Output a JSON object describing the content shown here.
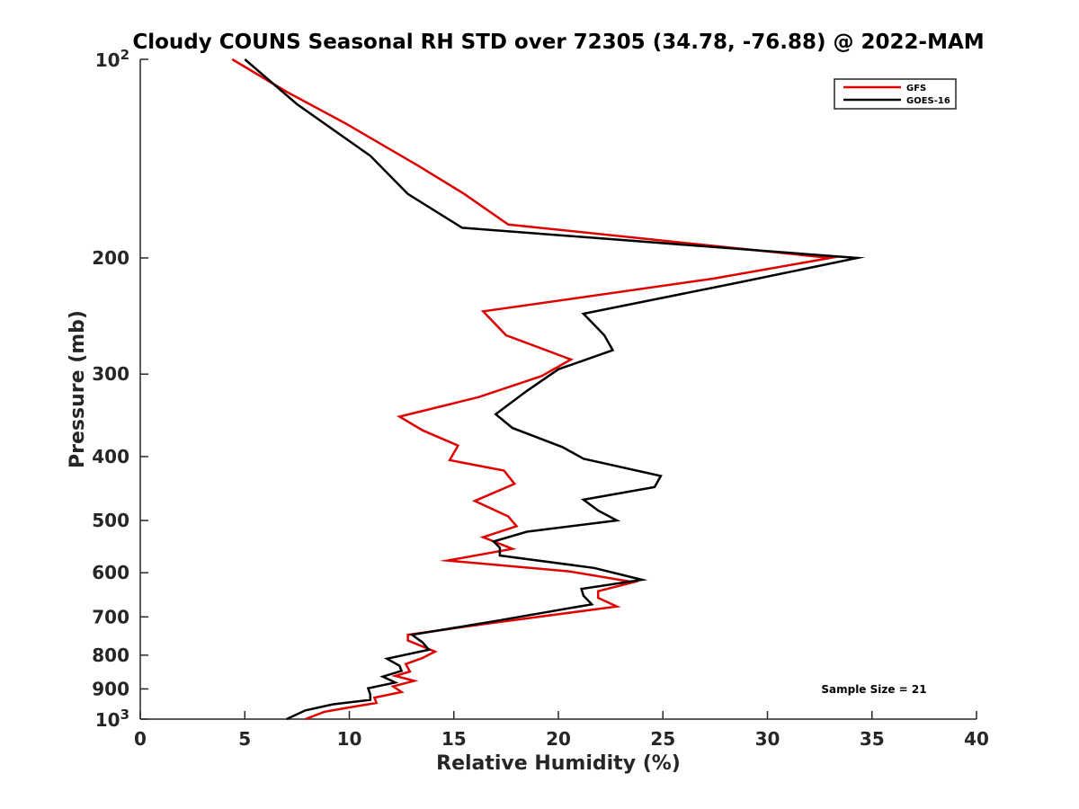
{
  "chart_data": {
    "type": "line",
    "title": "Cloudy COUNS Seasonal RH STD over 72305 (34.78, -76.88) @ 2022-MAM",
    "xlabel": "Relative Humidity (%)",
    "ylabel": "Pressure (mb)",
    "xlim": [
      0,
      40
    ],
    "ylim": [
      100,
      1000
    ],
    "yscale": "log",
    "y_reversed": true,
    "grid": false,
    "legend_position": "top-right",
    "xticks": [
      0,
      5,
      10,
      15,
      20,
      25,
      30,
      35,
      40
    ],
    "xtick_labels": [
      "0",
      "5",
      "10",
      "15",
      "20",
      "25",
      "30",
      "35",
      "40"
    ],
    "yticks": [
      100,
      200,
      300,
      400,
      500,
      600,
      700,
      800,
      900,
      1000
    ],
    "ytick_labels": [
      {
        "base": "10",
        "exp": "2"
      },
      {
        "text": "200"
      },
      {
        "text": "300"
      },
      {
        "text": "400"
      },
      {
        "text": "500"
      },
      {
        "text": "600"
      },
      {
        "text": "700"
      },
      {
        "text": "800"
      },
      {
        "text": "900"
      },
      {
        "base": "10",
        "exp": "3"
      }
    ],
    "annotation": "Sample Size = 21",
    "series": [
      {
        "name": "GFS",
        "color": "#e00000",
        "points": [
          [
            4.4,
            100
          ],
          [
            7.0,
            112
          ],
          [
            9.8,
            125
          ],
          [
            13.3,
            145
          ],
          [
            15.5,
            160
          ],
          [
            17.6,
            178
          ],
          [
            33.0,
            200
          ],
          [
            27.4,
            215
          ],
          [
            16.4,
            241
          ],
          [
            17.5,
            262
          ],
          [
            20.6,
            285
          ],
          [
            19.2,
            302
          ],
          [
            16.2,
            325
          ],
          [
            12.4,
            348
          ],
          [
            13.5,
            365
          ],
          [
            15.2,
            385
          ],
          [
            14.8,
            405
          ],
          [
            17.4,
            420
          ],
          [
            17.9,
            440
          ],
          [
            16.0,
            467
          ],
          [
            17.6,
            493
          ],
          [
            18.0,
            510
          ],
          [
            16.4,
            530
          ],
          [
            17.8,
            552
          ],
          [
            14.7,
            575
          ],
          [
            20.5,
            597
          ],
          [
            23.6,
            620
          ],
          [
            21.9,
            640
          ],
          [
            21.9,
            655
          ],
          [
            22.8,
            675
          ],
          [
            16.8,
            715
          ],
          [
            12.8,
            745
          ],
          [
            12.8,
            760
          ],
          [
            14.1,
            790
          ],
          [
            13.5,
            808
          ],
          [
            12.7,
            825
          ],
          [
            12.9,
            847
          ],
          [
            12.2,
            860
          ],
          [
            13.1,
            875
          ],
          [
            12.1,
            892
          ],
          [
            12.5,
            910
          ],
          [
            11.2,
            928
          ],
          [
            11.3,
            945
          ],
          [
            10.0,
            960
          ],
          [
            8.8,
            975
          ],
          [
            7.9,
            1000
          ]
        ]
      },
      {
        "name": "GOES-16",
        "color": "#000000",
        "points": [
          [
            5.0,
            100
          ],
          [
            7.5,
            117
          ],
          [
            11.0,
            140
          ],
          [
            12.8,
            160
          ],
          [
            15.4,
            180
          ],
          [
            34.3,
            200
          ],
          [
            28.6,
            218
          ],
          [
            21.2,
            243
          ],
          [
            22.2,
            262
          ],
          [
            22.6,
            276
          ],
          [
            20.0,
            295
          ],
          [
            18.5,
            318
          ],
          [
            17.0,
            345
          ],
          [
            17.8,
            362
          ],
          [
            20.2,
            387
          ],
          [
            21.2,
            403
          ],
          [
            24.9,
            428
          ],
          [
            24.6,
            445
          ],
          [
            21.2,
            465
          ],
          [
            21.9,
            483
          ],
          [
            22.8,
            500
          ],
          [
            18.5,
            520
          ],
          [
            16.9,
            538
          ],
          [
            17.2,
            550
          ],
          [
            17.2,
            565
          ],
          [
            21.7,
            590
          ],
          [
            24.0,
            615
          ],
          [
            21.1,
            635
          ],
          [
            21.2,
            650
          ],
          [
            21.6,
            670
          ],
          [
            17.0,
            710
          ],
          [
            13.0,
            745
          ],
          [
            13.5,
            765
          ],
          [
            13.8,
            785
          ],
          [
            11.8,
            810
          ],
          [
            12.4,
            830
          ],
          [
            12.5,
            845
          ],
          [
            11.6,
            862
          ],
          [
            12.2,
            880
          ],
          [
            10.9,
            898
          ],
          [
            11.0,
            918
          ],
          [
            11.0,
            935
          ],
          [
            9.2,
            950
          ],
          [
            7.9,
            970
          ],
          [
            7.0,
            1000
          ]
        ]
      }
    ]
  }
}
